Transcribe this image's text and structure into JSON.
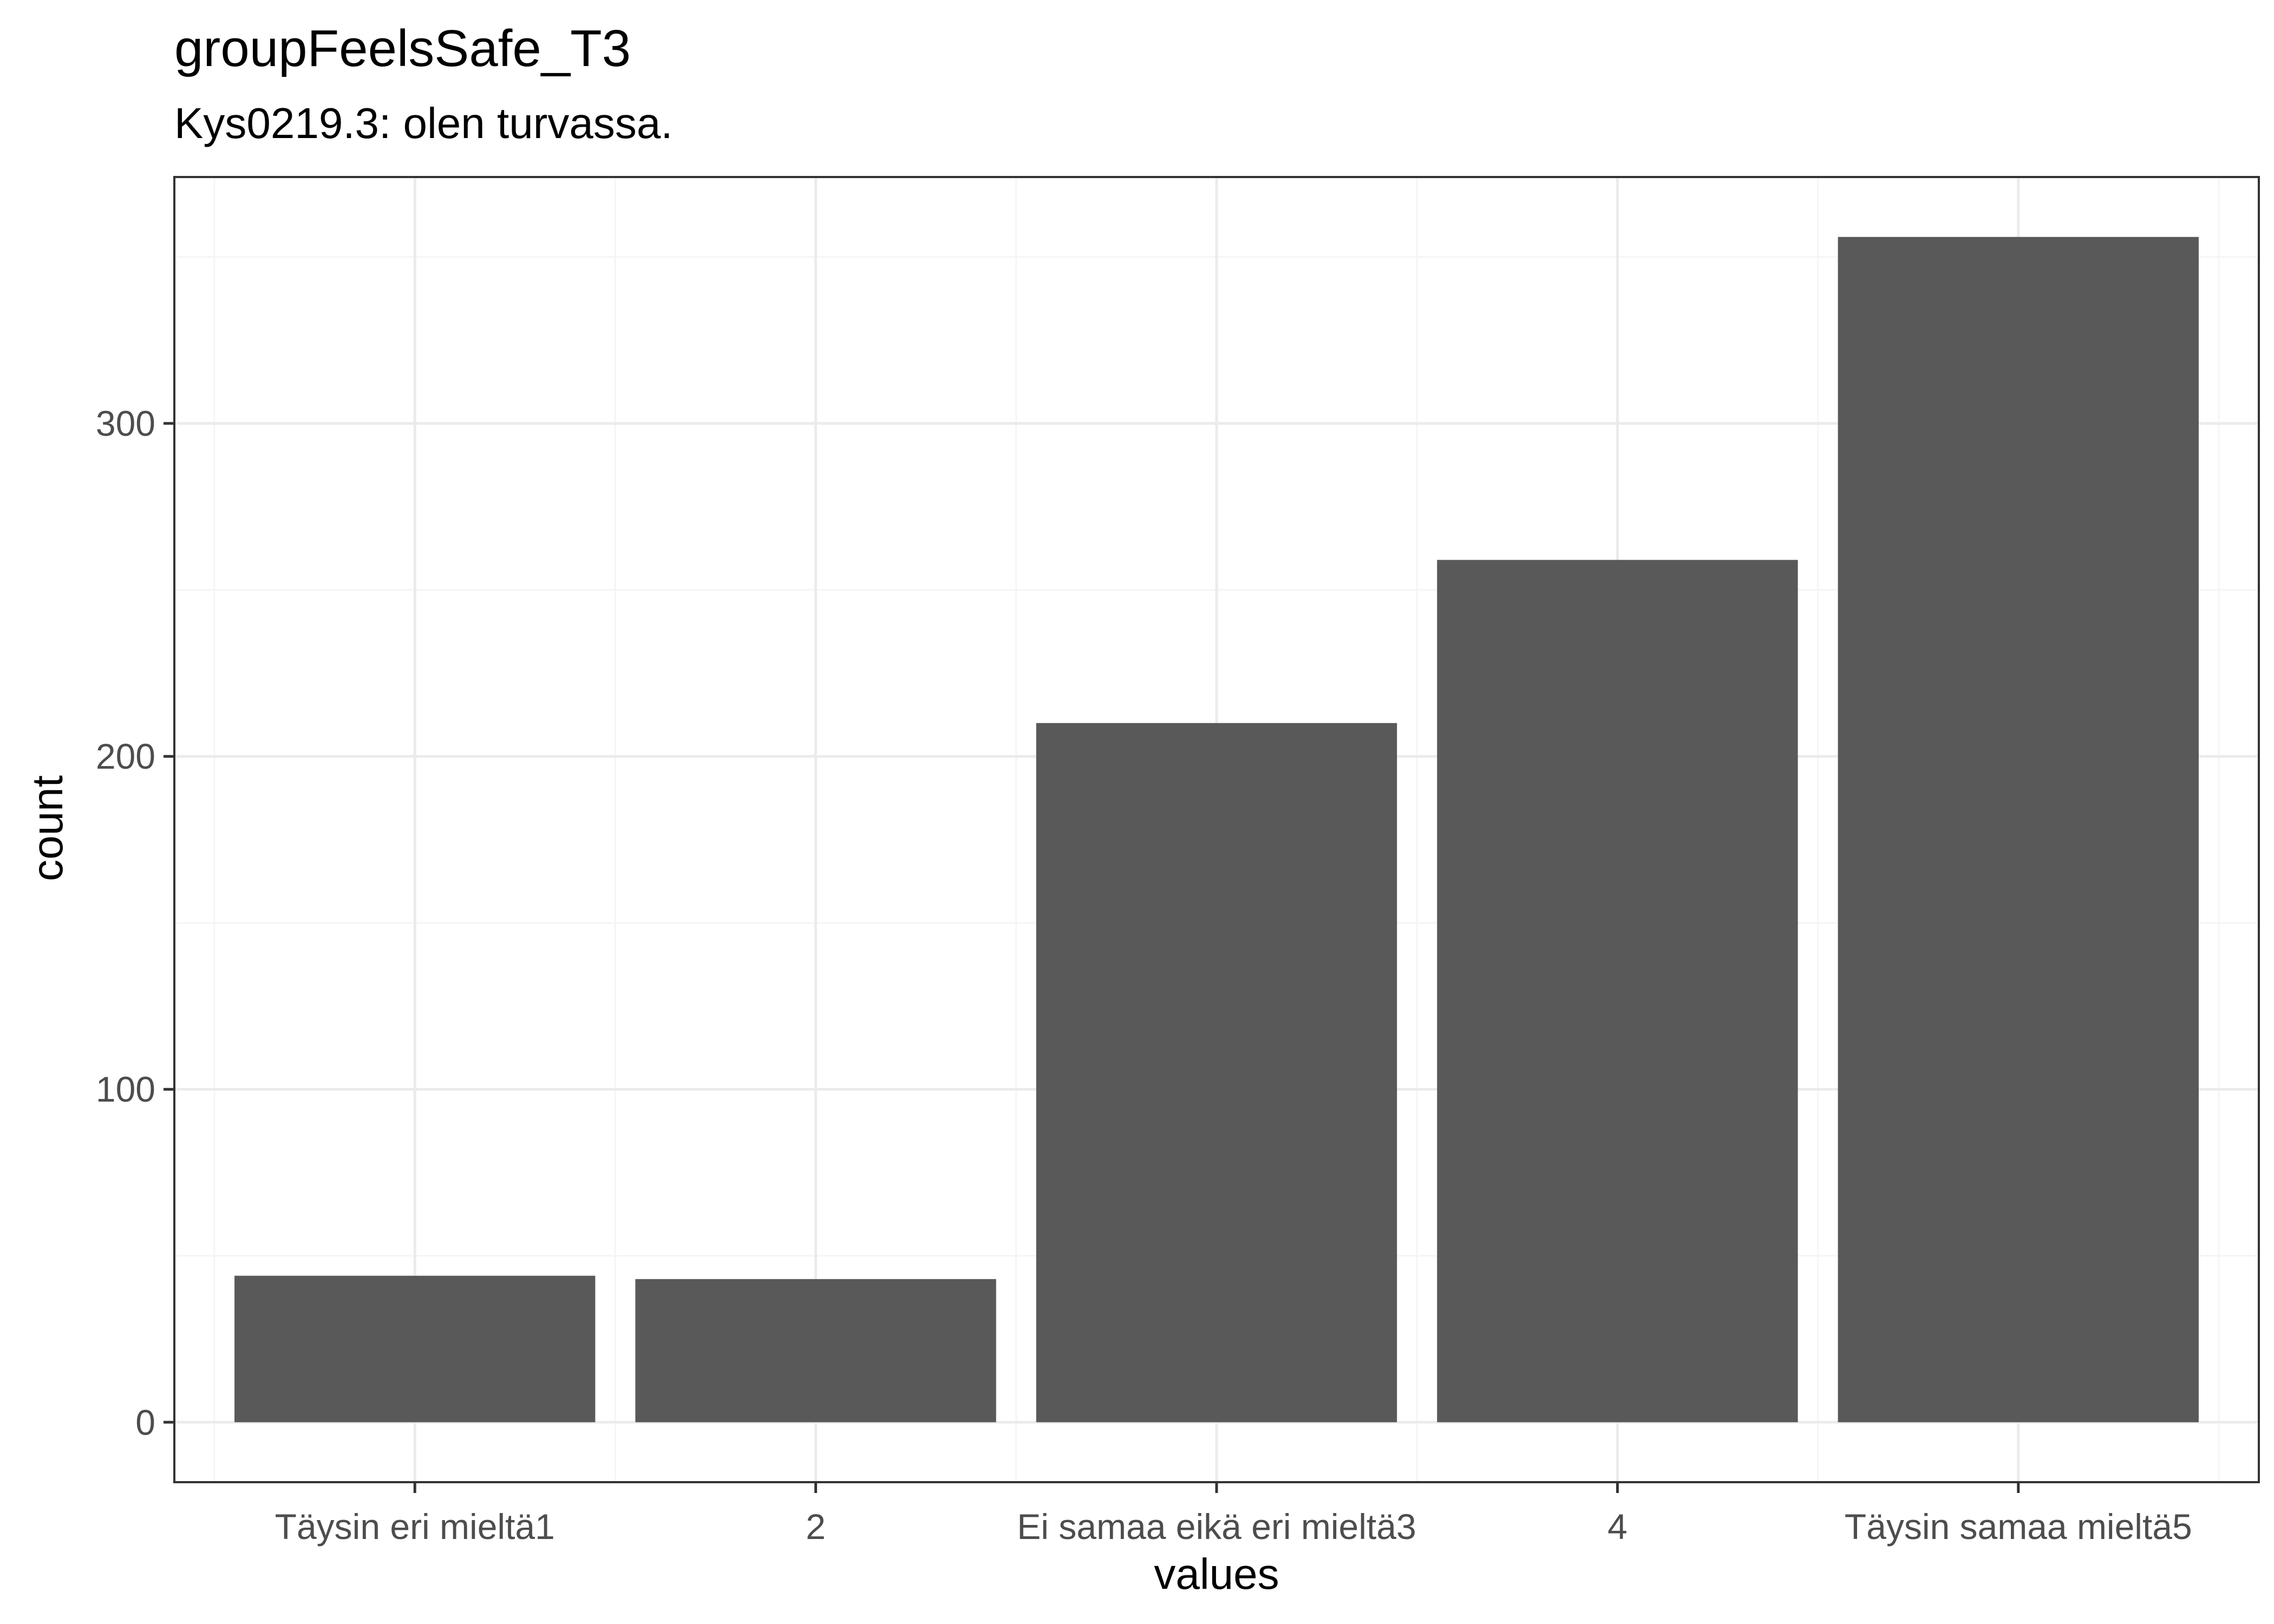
{
  "chart_data": {
    "type": "bar",
    "title": "groupFeelsSafe_T3",
    "subtitle": "Kys0219.3: olen turvassa.",
    "xlabel": "values",
    "ylabel": "count",
    "categories": [
      "Täysin eri mieltä1",
      "2",
      "Ei samaa eikä eri mieltä3",
      "4",
      "Täysin samaa mieltä5"
    ],
    "values": [
      44,
      43,
      210,
      259,
      356
    ],
    "ylim": [
      -18,
      374
    ],
    "yticks": [
      0,
      100,
      200,
      300
    ],
    "grid": true,
    "colors": {
      "bar": "#595959",
      "panel_border": "#333333",
      "grid_major": "#ebebeb",
      "grid_minor": "#f5f5f5",
      "tick_label": "#4d4d4d"
    }
  }
}
